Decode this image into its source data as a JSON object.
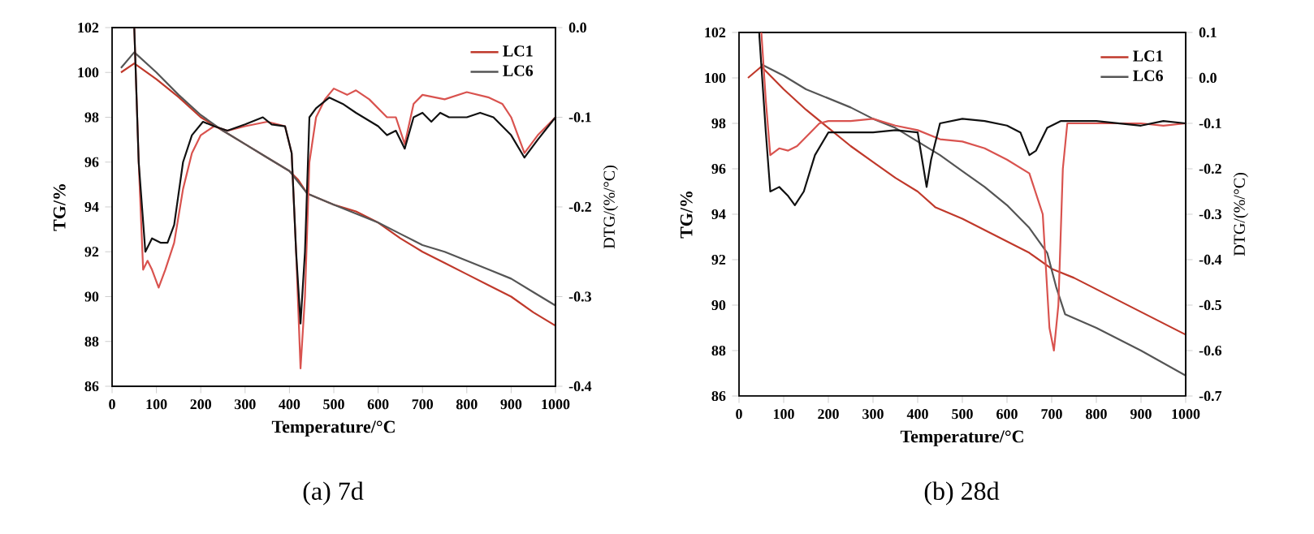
{
  "chart_data": [
    {
      "type": "line",
      "title": "(a) 7d",
      "xlabel": "Temperature/°C",
      "ylabel": "TG/%",
      "y2label": "DTG/(%/°C)",
      "xlim": [
        0,
        1000
      ],
      "xticks": [
        0,
        100,
        200,
        300,
        400,
        500,
        600,
        700,
        800,
        900,
        1000
      ],
      "ylim": [
        86,
        102
      ],
      "yticks": [
        86,
        88,
        90,
        92,
        94,
        96,
        98,
        100,
        102
      ],
      "y2lim": [
        -0.4,
        0.0
      ],
      "y2ticks": [
        -0.4,
        -0.3,
        -0.2,
        -0.1,
        {
          "value": 0,
          "label": "0.0"
        }
      ],
      "legend": "top right",
      "series": [
        {
          "name": "LC1",
          "color": "#c0392b",
          "x": [
            20,
            50,
            100,
            150,
            200,
            250,
            300,
            350,
            400,
            420,
            440,
            500,
            550,
            600,
            650,
            700,
            750,
            800,
            850,
            900,
            950,
            1000
          ],
          "values": [
            100.0,
            100.4,
            99.7,
            98.9,
            98.0,
            97.4,
            96.8,
            96.2,
            95.6,
            95.2,
            94.6,
            94.1,
            93.8,
            93.3,
            92.6,
            92.0,
            91.5,
            91.0,
            90.5,
            90.0,
            89.3,
            88.7
          ]
        },
        {
          "name": "LC6",
          "color": "#555555",
          "x": [
            20,
            50,
            100,
            150,
            200,
            250,
            300,
            350,
            400,
            420,
            440,
            500,
            550,
            600,
            650,
            700,
            750,
            800,
            850,
            900,
            950,
            1000
          ],
          "values": [
            100.2,
            100.9,
            100.0,
            99.0,
            98.1,
            97.4,
            96.8,
            96.2,
            95.6,
            95.1,
            94.6,
            94.1,
            93.7,
            93.3,
            92.8,
            92.3,
            92.0,
            91.6,
            91.2,
            90.8,
            90.2,
            89.6
          ]
        },
        {
          "axis": "y2",
          "color": "#d9534f",
          "x": [
            50,
            60,
            70,
            80,
            90,
            105,
            120,
            140,
            160,
            180,
            200,
            230,
            260,
            300,
            350,
            390,
            405,
            415,
            425,
            435,
            445,
            460,
            480,
            500,
            530,
            550,
            580,
            620,
            640,
            660,
            680,
            700,
            750,
            800,
            850,
            880,
            900,
            930,
            960,
            1000
          ],
          "values": [
            0.0,
            -0.15,
            -0.27,
            -0.26,
            -0.27,
            -0.29,
            -0.27,
            -0.24,
            -0.18,
            -0.14,
            -0.12,
            -0.11,
            -0.115,
            -0.11,
            -0.105,
            -0.11,
            -0.14,
            -0.25,
            -0.38,
            -0.3,
            -0.15,
            -0.1,
            -0.08,
            -0.068,
            -0.075,
            -0.07,
            -0.08,
            -0.1,
            -0.1,
            -0.13,
            -0.085,
            -0.075,
            -0.08,
            -0.072,
            -0.078,
            -0.085,
            -0.1,
            -0.14,
            -0.12,
            -0.1
          ]
        },
        {
          "axis": "y2",
          "color": "#111111",
          "x": [
            50,
            60,
            75,
            90,
            110,
            125,
            140,
            160,
            180,
            205,
            230,
            260,
            300,
            340,
            360,
            390,
            405,
            415,
            425,
            435,
            445,
            460,
            490,
            520,
            550,
            600,
            620,
            640,
            660,
            680,
            700,
            720,
            740,
            760,
            800,
            830,
            860,
            900,
            930,
            960,
            1000
          ],
          "values": [
            0.0,
            -0.15,
            -0.25,
            -0.235,
            -0.24,
            -0.24,
            -0.22,
            -0.15,
            -0.12,
            -0.105,
            -0.11,
            -0.115,
            -0.108,
            -0.1,
            -0.108,
            -0.11,
            -0.14,
            -0.25,
            -0.33,
            -0.25,
            -0.1,
            -0.09,
            -0.078,
            -0.085,
            -0.095,
            -0.11,
            -0.12,
            -0.115,
            -0.135,
            -0.1,
            -0.095,
            -0.105,
            -0.095,
            -0.1,
            -0.1,
            -0.095,
            -0.1,
            -0.12,
            -0.145,
            -0.125,
            -0.1
          ]
        }
      ]
    },
    {
      "type": "line",
      "title": "(b) 28d",
      "xlabel": "Temperature/°C",
      "ylabel": "TG/%",
      "y2label": "DTG/(%/°C)",
      "xlim": [
        0,
        1000
      ],
      "xticks": [
        0,
        100,
        200,
        300,
        400,
        500,
        600,
        700,
        800,
        900,
        1000
      ],
      "ylim": [
        86,
        102
      ],
      "yticks": [
        86,
        88,
        90,
        92,
        94,
        96,
        98,
        100,
        102
      ],
      "y2lim": [
        -0.7,
        0.1
      ],
      "y2ticks": [
        -0.7,
        -0.6,
        -0.5,
        -0.4,
        -0.3,
        -0.2,
        -0.1,
        {
          "value": 0,
          "label": "0.0"
        },
        0.1
      ],
      "legend": "top right",
      "series": [
        {
          "name": "LC1",
          "color": "#c0392b",
          "x": [
            20,
            50,
            100,
            150,
            200,
            250,
            300,
            350,
            400,
            440,
            500,
            550,
            600,
            650,
            700,
            750,
            800,
            850,
            900,
            950,
            1000
          ],
          "values": [
            100.0,
            100.5,
            99.5,
            98.6,
            97.8,
            97.0,
            96.3,
            95.6,
            95.0,
            94.3,
            93.8,
            93.3,
            92.8,
            92.3,
            91.6,
            91.2,
            90.7,
            90.2,
            89.7,
            89.2,
            88.7
          ]
        },
        {
          "name": "LC6",
          "color": "#555555",
          "x": [
            50,
            100,
            150,
            200,
            250,
            300,
            350,
            400,
            450,
            500,
            550,
            600,
            650,
            690,
            710,
            730,
            800,
            900,
            1000
          ],
          "values": [
            100.6,
            100.1,
            99.5,
            99.1,
            98.7,
            98.2,
            97.8,
            97.2,
            96.6,
            95.9,
            95.2,
            94.4,
            93.4,
            92.3,
            90.8,
            89.6,
            89.0,
            88.0,
            86.9
          ]
        },
        {
          "axis": "y2",
          "color": "#d9534f",
          "x": [
            50,
            60,
            70,
            90,
            110,
            130,
            160,
            180,
            200,
            250,
            300,
            350,
            400,
            450,
            500,
            550,
            600,
            650,
            680,
            695,
            705,
            715,
            725,
            735,
            800,
            900,
            950,
            1000
          ],
          "values": [
            0.1,
            -0.05,
            -0.17,
            -0.155,
            -0.16,
            -0.15,
            -0.12,
            -0.1,
            -0.095,
            -0.095,
            -0.09,
            -0.105,
            -0.115,
            -0.135,
            -0.14,
            -0.155,
            -0.18,
            -0.21,
            -0.3,
            -0.55,
            -0.6,
            -0.5,
            -0.2,
            -0.1,
            -0.1,
            -0.1,
            -0.105,
            -0.1
          ]
        },
        {
          "axis": "y2",
          "color": "#111111",
          "x": [
            45,
            60,
            70,
            90,
            110,
            125,
            145,
            170,
            200,
            250,
            300,
            350,
            400,
            410,
            420,
            430,
            450,
            500,
            550,
            600,
            630,
            650,
            665,
            690,
            720,
            800,
            900,
            950,
            1000
          ],
          "values": [
            0.1,
            -0.12,
            -0.25,
            -0.24,
            -0.26,
            -0.28,
            -0.25,
            -0.17,
            -0.12,
            -0.12,
            -0.12,
            -0.115,
            -0.12,
            -0.18,
            -0.24,
            -0.18,
            -0.1,
            -0.09,
            -0.095,
            -0.105,
            -0.12,
            -0.17,
            -0.16,
            -0.11,
            -0.095,
            -0.095,
            -0.105,
            -0.095,
            -0.1
          ]
        }
      ]
    }
  ]
}
